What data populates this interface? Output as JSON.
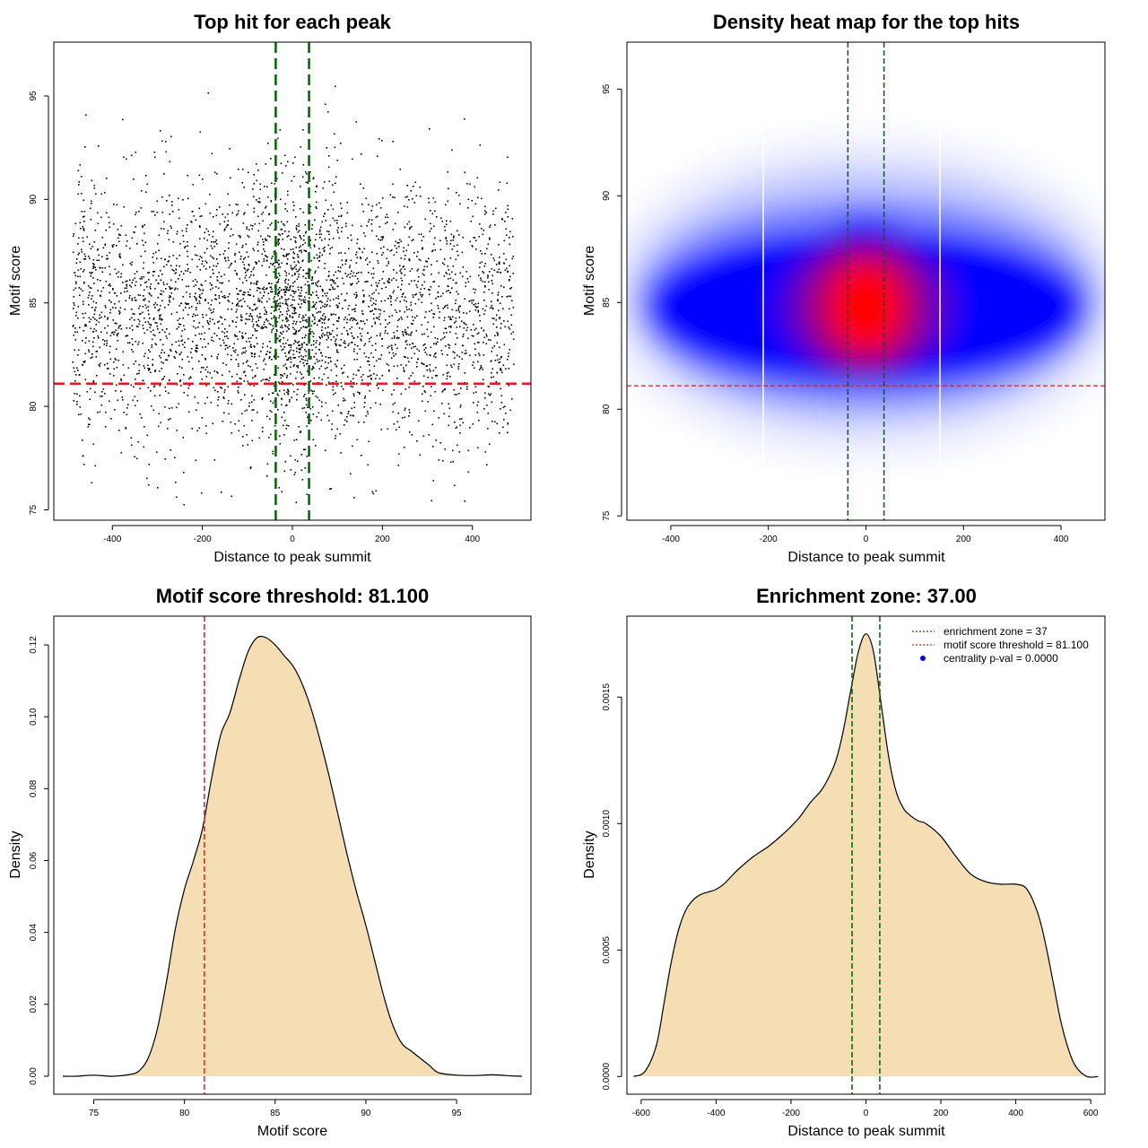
{
  "chart_data": [
    {
      "id": "scatter",
      "type": "scatter",
      "title": "Top hit for each peak",
      "xlabel": "Distance to peak summit",
      "ylabel": "Motif score",
      "xlim": [
        -530,
        530
      ],
      "ylim": [
        74.5,
        97.6
      ],
      "xticks": [
        -400,
        -200,
        0,
        200,
        400
      ],
      "yticks": [
        75,
        80,
        85,
        90,
        95
      ],
      "x_range": [
        -490,
        490
      ],
      "y_mean": 84.6,
      "y_sd": 3.2,
      "n_points": 3800,
      "threshold": 81.1,
      "enrichment_zone": [
        -37,
        37
      ],
      "colors": {
        "points": "#000000",
        "threshold": "#e31a1c",
        "zone": "#006400"
      }
    },
    {
      "id": "heatmap",
      "type": "heatmap",
      "title": "Density heat map for the top hits",
      "xlabel": "Distance to peak summit",
      "ylabel": "Motif score",
      "xlim": [
        -490,
        490
      ],
      "ylim": [
        74.8,
        97.2
      ],
      "xticks": [
        -400,
        -200,
        0,
        200,
        400
      ],
      "yticks": [
        75,
        80,
        85,
        90,
        95
      ],
      "peak": {
        "x": 0,
        "y": 84.8
      },
      "threshold": 81.1,
      "enrichment_zone": [
        -37,
        37
      ],
      "colors": {
        "low": "#ffffff",
        "mid": "#0000ff",
        "high": "#ff0000",
        "threshold": "#e31a1c",
        "zone": "#006400"
      }
    },
    {
      "id": "score-density",
      "type": "area",
      "title": "Motif score threshold: 81.100",
      "xlabel": "Motif score",
      "ylabel": "Density",
      "xlim": [
        72.8,
        99.1
      ],
      "ylim": [
        -0.005,
        0.128
      ],
      "xticks": [
        75,
        80,
        85,
        90,
        95
      ],
      "yticks": [
        0.0,
        0.02,
        0.04,
        0.06,
        0.08,
        0.1,
        0.12
      ],
      "ytick_labels": [
        "0.00",
        "0.02",
        "0.04",
        "0.06",
        "0.08",
        "0.10",
        "0.12"
      ],
      "x": [
        73.3,
        74,
        75,
        76,
        77,
        77.5,
        78,
        78.5,
        79,
        79.5,
        80,
        80.5,
        81,
        81.5,
        82,
        82.5,
        83,
        83.5,
        84,
        84.5,
        85,
        85.5,
        86,
        86.5,
        87,
        87.5,
        88,
        88.5,
        89,
        89.5,
        90,
        90.5,
        91,
        91.5,
        92,
        92.5,
        93,
        93.5,
        94,
        95,
        96,
        97,
        98,
        98.6
      ],
      "values": [
        0.0,
        0.0,
        0.0003,
        0.0,
        0.0005,
        0.0015,
        0.005,
        0.013,
        0.026,
        0.041,
        0.052,
        0.06,
        0.069,
        0.083,
        0.095,
        0.101,
        0.11,
        0.118,
        0.122,
        0.122,
        0.12,
        0.117,
        0.114,
        0.109,
        0.102,
        0.093,
        0.083,
        0.072,
        0.061,
        0.051,
        0.042,
        0.032,
        0.022,
        0.014,
        0.009,
        0.007,
        0.005,
        0.003,
        0.001,
        0.0003,
        0.0002,
        0.0004,
        0.0001,
        0.0
      ],
      "threshold": 81.1,
      "colors": {
        "fill": "#f5deb3",
        "line": "#000000",
        "threshold": "#e31a1c"
      }
    },
    {
      "id": "distance-density",
      "type": "area",
      "title": "Enrichment zone: 37.00",
      "xlabel": "Distance to peak summit",
      "ylabel": "Density",
      "xlim": [
        -638,
        638
      ],
      "ylim": [
        -7e-05,
        0.00182
      ],
      "xticks": [
        -600,
        -400,
        -200,
        0,
        200,
        400,
        600
      ],
      "yticks": [
        0.0,
        0.0005,
        0.001,
        0.0015
      ],
      "ytick_labels": [
        "0.0000",
        "0.0005",
        "0.0010",
        "0.0015"
      ],
      "x": [
        -620,
        -590,
        -560,
        -540,
        -520,
        -500,
        -480,
        -460,
        -440,
        -420,
        -400,
        -380,
        -360,
        -340,
        -300,
        -260,
        -220,
        -180,
        -150,
        -120,
        -100,
        -80,
        -60,
        -40,
        -20,
        0,
        20,
        40,
        60,
        80,
        100,
        120,
        140,
        160,
        200,
        240,
        280,
        320,
        360,
        400,
        430,
        460,
        480,
        500,
        520,
        540,
        560,
        590,
        620
      ],
      "values": [
        0.0,
        2e-05,
        0.00012,
        0.00028,
        0.00045,
        0.00058,
        0.00066,
        0.0007,
        0.00072,
        0.00073,
        0.00074,
        0.00076,
        0.00079,
        0.00082,
        0.00087,
        0.00091,
        0.00096,
        0.00102,
        0.00108,
        0.00113,
        0.00118,
        0.00125,
        0.00137,
        0.00153,
        0.00168,
        0.00175,
        0.00168,
        0.00148,
        0.00127,
        0.00113,
        0.00106,
        0.00103,
        0.00101,
        0.001,
        0.00095,
        0.00087,
        0.0008,
        0.00077,
        0.00076,
        0.00076,
        0.00074,
        0.00064,
        0.00052,
        0.00037,
        0.00022,
        0.00011,
        4e-05,
        0.0,
        0.0
      ],
      "enrichment_zone": [
        -37,
        37
      ],
      "colors": {
        "fill": "#f5deb3",
        "line": "#000000",
        "zone": "#006400"
      },
      "legend": {
        "position": "top-right",
        "entries": [
          {
            "label": "enrichment zone = 37",
            "color": "#006400",
            "kind": "line"
          },
          {
            "label": "motif score threshold = 81.100",
            "color": "#e31a1c",
            "kind": "line"
          },
          {
            "label": "centrality p-val = 0.0000",
            "color": "#0000ff",
            "kind": "point"
          }
        ]
      }
    }
  ]
}
